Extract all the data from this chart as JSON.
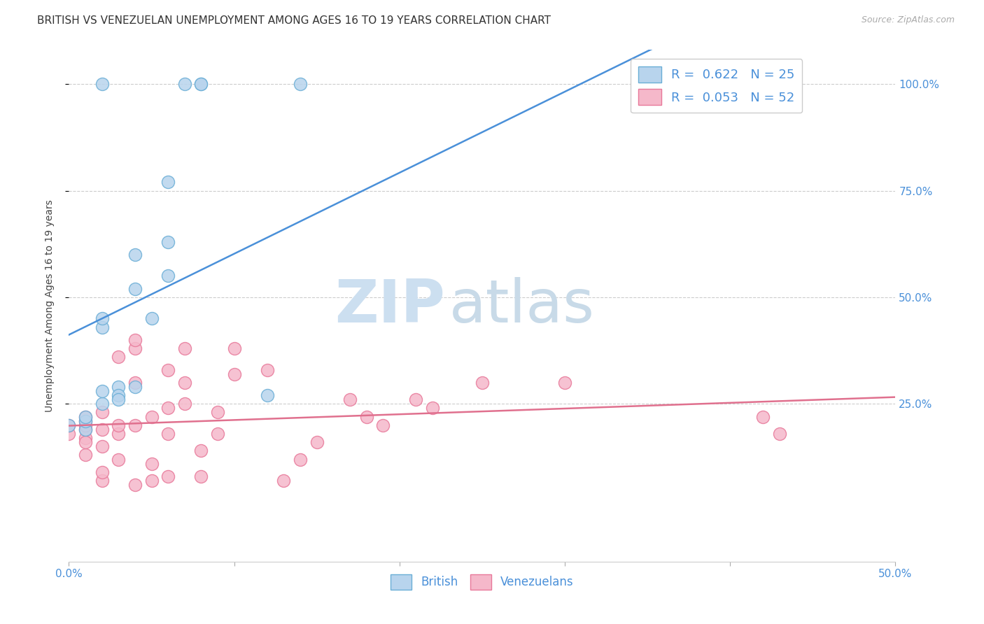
{
  "title": "BRITISH VS VENEZUELAN UNEMPLOYMENT AMONG AGES 16 TO 19 YEARS CORRELATION CHART",
  "source": "Source: ZipAtlas.com",
  "ylabel": "Unemployment Among Ages 16 to 19 years",
  "xlim": [
    0.0,
    0.5
  ],
  "ylim": [
    -0.12,
    1.08
  ],
  "xticks": [
    0.0,
    0.1,
    0.2,
    0.3,
    0.4,
    0.5
  ],
  "xticklabels": [
    "0.0%",
    "",
    "",
    "",
    "",
    "50.0%"
  ],
  "yticks": [
    0.25,
    0.5,
    0.75,
    1.0
  ],
  "yticklabels": [
    "25.0%",
    "50.0%",
    "75.0%",
    "100.0%"
  ],
  "british_R": "0.622",
  "british_N": "25",
  "venezuelan_R": "0.053",
  "venezuelan_N": "52",
  "british_color": "#b8d4ed",
  "venezuelan_color": "#f5b8ca",
  "british_edge_color": "#6aaed6",
  "venezuelan_edge_color": "#e8799a",
  "british_line_color": "#4a90d9",
  "venezuelan_line_color": "#e0708e",
  "legend_border_color": "#cccccc",
  "watermark_zip_color": "#ccdff0",
  "watermark_atlas_color": "#c8dae8",
  "british_x": [
    0.0,
    0.01,
    0.01,
    0.01,
    0.02,
    0.02,
    0.02,
    0.02,
    0.02,
    0.03,
    0.03,
    0.03,
    0.04,
    0.04,
    0.04,
    0.05,
    0.06,
    0.06,
    0.06,
    0.07,
    0.08,
    0.08,
    0.12,
    0.14,
    0.43
  ],
  "british_y": [
    0.2,
    0.19,
    0.21,
    0.22,
    0.25,
    0.43,
    0.45,
    0.28,
    1.0,
    0.29,
    0.27,
    0.26,
    0.52,
    0.6,
    0.29,
    0.45,
    0.55,
    0.63,
    0.77,
    1.0,
    1.0,
    1.0,
    0.27,
    1.0,
    1.0
  ],
  "venezuelan_x": [
    0.0,
    0.0,
    0.01,
    0.01,
    0.01,
    0.01,
    0.01,
    0.01,
    0.01,
    0.02,
    0.02,
    0.02,
    0.02,
    0.02,
    0.03,
    0.03,
    0.03,
    0.03,
    0.04,
    0.04,
    0.04,
    0.04,
    0.04,
    0.05,
    0.05,
    0.05,
    0.06,
    0.06,
    0.06,
    0.06,
    0.07,
    0.07,
    0.07,
    0.08,
    0.08,
    0.09,
    0.09,
    0.1,
    0.1,
    0.12,
    0.13,
    0.14,
    0.15,
    0.17,
    0.18,
    0.19,
    0.21,
    0.22,
    0.25,
    0.3,
    0.42,
    0.43
  ],
  "venezuelan_y": [
    0.18,
    0.2,
    0.13,
    0.17,
    0.19,
    0.2,
    0.21,
    0.22,
    0.16,
    0.07,
    0.09,
    0.15,
    0.19,
    0.23,
    0.12,
    0.18,
    0.2,
    0.36,
    0.06,
    0.2,
    0.3,
    0.38,
    0.4,
    0.07,
    0.11,
    0.22,
    0.08,
    0.18,
    0.24,
    0.33,
    0.25,
    0.3,
    0.38,
    0.08,
    0.14,
    0.18,
    0.23,
    0.32,
    0.38,
    0.33,
    0.07,
    0.12,
    0.16,
    0.26,
    0.22,
    0.2,
    0.26,
    0.24,
    0.3,
    0.3,
    0.22,
    0.18
  ],
  "title_fontsize": 11,
  "axis_label_fontsize": 10,
  "tick_fontsize": 11,
  "legend_fontsize": 13,
  "marker_size": 13,
  "background_color": "#ffffff",
  "grid_color": "#cccccc",
  "axis_color": "#4a90d9"
}
